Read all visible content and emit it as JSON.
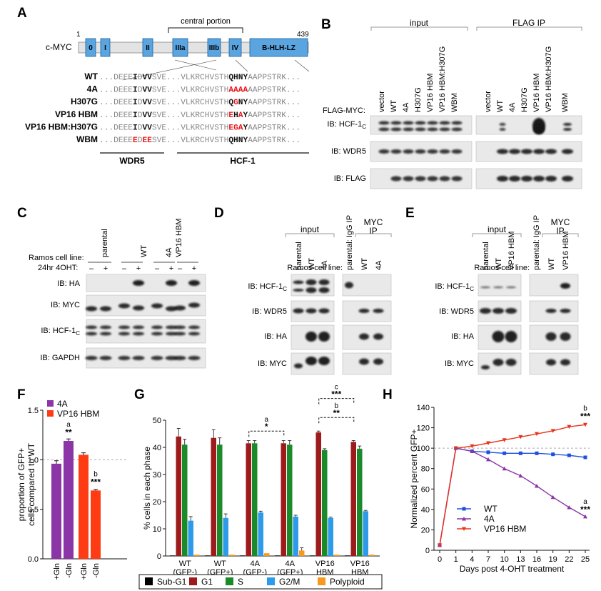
{
  "colors": {
    "domain_fill": "#5aa5e0",
    "domain_stroke": "#1b5f9e",
    "backbone": "#e3e3e3",
    "mut_red": "#e8141b",
    "blot_bg": "#e9e9e9",
    "band": "#141414",
    "purple": "#8b35a6",
    "orange_red": "#ff3b14",
    "subg1": "#000000",
    "g1": "#9e1b1b",
    "s": "#1b8a2a",
    "g2m": "#2e9bea",
    "poly": "#f59a1e",
    "h_wt": "#1f4fe0",
    "h_4a": "#8b35a6",
    "h_vp16": "#e8341b"
  },
  "panel_labels": [
    "A",
    "B",
    "C",
    "D",
    "E",
    "F",
    "G",
    "H"
  ],
  "panelA": {
    "protein": "c-MYC",
    "start": "1",
    "end": "439",
    "region": "central portion",
    "domains": [
      "0",
      "I",
      "II",
      "IIIa",
      "IIIb",
      "IV",
      "B-HLH-LZ"
    ],
    "rows": [
      {
        "name": "WT",
        "a": "DEEE",
        "b": "I",
        "c": "D",
        "d": "VV",
        "e": "SVE",
        "f": "VLKRCHVSTH",
        "g": "QHNY",
        "h": "AAPPSTRK"
      },
      {
        "name": "4A",
        "a": "DEEE",
        "b": "I",
        "c": "D",
        "d": "VV",
        "e": "SVE",
        "f": "VLKRCHVSTH",
        "g": "AAAA",
        "h": "AAPPSTRK"
      },
      {
        "name": "H307G",
        "a": "DEEE",
        "b": "I",
        "c": "D",
        "d": "VV",
        "e": "SVE",
        "f": "VLKRCHVSTH",
        "g": "QGNY",
        "h": "AAPPSTRK"
      },
      {
        "name": "VP16 HBM",
        "a": "DEEE",
        "b": "I",
        "c": "D",
        "d": "VV",
        "e": "SVE",
        "f": "VLKRCHVSTH",
        "g": "EHAY",
        "h": "AAPPSTRK"
      },
      {
        "name": "VP16 HBM:H307G",
        "a": "DEEE",
        "b": "I",
        "c": "D",
        "d": "VV",
        "e": "SVE",
        "f": "VLKRCHVSTH",
        "g": "EGAY",
        "h": "AAPPSTRK"
      },
      {
        "name": "WBM",
        "a": "DEEE",
        "b": "E",
        "c": "D",
        "d": "EE",
        "e": "SVE",
        "f": "VLKRCHVSTH",
        "g": "QHNY",
        "h": "AAPPSTRK"
      }
    ],
    "wdr5": "WDR5",
    "hcf": "HCF-1"
  },
  "panelB": {
    "input": "input",
    "flagip": "FLAG IP",
    "row_label": "FLAG-MYC:",
    "lanes": [
      "vector",
      "WT",
      "4A",
      "H307G",
      "VP16 HBM",
      "VP16 HBM:H307G",
      "WBM"
    ],
    "blots": [
      "IB: HCF-1",
      "IB: WDR5",
      "IB: FLAG"
    ]
  },
  "panelC": {
    "ramos": "Ramos cell line:",
    "ohtlabel": "24hr 4OHT:",
    "groups": [
      "parental",
      "WT",
      "4A",
      "VP16 HBM"
    ],
    "signs": [
      "–",
      "+"
    ],
    "blots": [
      "IB: HA",
      "IB: MYC",
      "IB: HCF-1",
      "IB: GAPDH"
    ]
  },
  "panelD": {
    "input": "input",
    "igg": "parental: IgG IP",
    "mycip": "MYC IP",
    "ramos": "Ramos cell line:",
    "lanes": [
      "parental",
      "WT",
      "4A"
    ],
    "iplanes": [
      "WT",
      "4A"
    ],
    "blots": [
      "IB: HCF-1",
      "IB: WDR5",
      "IB: HA",
      "IB: MYC"
    ]
  },
  "panelE": {
    "input": "input",
    "igg": "parental: IgG IP",
    "mycip": "MYC IP",
    "ramos": "Ramos cell line:",
    "lanes": [
      "parental",
      "WT",
      "VP16 HBM"
    ],
    "iplanes": [
      "WT",
      "VP16 HBM"
    ],
    "blots": [
      "IB: HCF-1",
      "IB: WDR5",
      "IB: HA",
      "IB: MYC"
    ]
  },
  "sub_c": "C",
  "chart_data": [
    {
      "panel": "F",
      "type": "bar",
      "ylabel": "proportion of GFP+ cells compared to WT",
      "ylim": [
        0,
        1.5
      ],
      "yticks": [
        "0.0",
        "0.5",
        "1.0",
        "1.5"
      ],
      "categories": [
        "+Gln",
        "-Gln",
        "+Gln",
        "-Gln"
      ],
      "values": [
        0.96,
        1.19,
        1.05,
        0.69
      ],
      "errors": [
        0.03,
        0.02,
        0.02,
        0.01
      ],
      "legend": [
        "4A",
        "VP16 HBM"
      ],
      "annotations": [
        {
          "bar": 1,
          "letter": "a",
          "stars": "**"
        },
        {
          "bar": 3,
          "letter": "b",
          "stars": "***"
        }
      ]
    },
    {
      "panel": "G",
      "type": "bar",
      "ylabel": "% cells in each phase",
      "ylim": [
        0,
        50
      ],
      "yticks": [
        "0",
        "10",
        "20",
        "30",
        "40",
        "50"
      ],
      "groups": [
        [
          "WT",
          "(GFP-)"
        ],
        [
          "WT",
          "(GFP+)"
        ],
        [
          "4A",
          "(GFP-)"
        ],
        [
          "4A",
          "(GFP+)"
        ],
        [
          "VP16",
          "HBM",
          "(GFP-)"
        ],
        [
          "VP16",
          "HBM",
          "(GFP+)"
        ]
      ],
      "series": [
        {
          "name": "Sub-G1",
          "values": [
            0.2,
            0.2,
            0.2,
            0.2,
            0.2,
            0.2
          ],
          "errors": [
            0,
            0,
            0,
            0,
            0,
            0
          ]
        },
        {
          "name": "G1",
          "values": [
            44,
            43.5,
            41.5,
            41.5,
            45.5,
            42
          ],
          "errors": [
            3,
            3,
            1,
            1,
            0.5,
            0.5
          ]
        },
        {
          "name": "S",
          "values": [
            41,
            41,
            41.5,
            41,
            39,
            39.5
          ],
          "errors": [
            2,
            2.5,
            1,
            1.5,
            0.5,
            1
          ]
        },
        {
          "name": "G2/M",
          "values": [
            13,
            14,
            16,
            14.5,
            14,
            16.5
          ],
          "errors": [
            1.5,
            1.5,
            0.5,
            0.5,
            0.3,
            0.3
          ]
        },
        {
          "name": "Polyploid",
          "values": [
            0.5,
            0.5,
            1,
            2,
            0.5,
            0.5
          ],
          "errors": [
            0,
            0,
            0,
            1,
            0,
            0
          ]
        }
      ],
      "annotations": [
        {
          "from": 2,
          "to": 3,
          "letter": "a",
          "stars": "*"
        },
        {
          "from": 4,
          "to": 5,
          "letter": "b",
          "stars": "**"
        },
        {
          "from": 4,
          "to": 5,
          "letter": "c",
          "stars": "***"
        }
      ]
    },
    {
      "panel": "H",
      "type": "line",
      "ylabel": "Normalized percent GFP+",
      "xlabel": "Days post 4-OHT treatment",
      "ylim": [
        0,
        140
      ],
      "yticks": [
        "0",
        "20",
        "40",
        "60",
        "80",
        "100",
        "120",
        "140"
      ],
      "x": [
        0,
        1,
        4,
        7,
        10,
        13,
        16,
        19,
        22,
        25
      ],
      "series": [
        {
          "name": "WT",
          "values": [
            5,
            100,
            97,
            96,
            95,
            95,
            95,
            94,
            93,
            91
          ]
        },
        {
          "name": "4A",
          "values": [
            5,
            100,
            97,
            89,
            80,
            73,
            63,
            52,
            42,
            33
          ]
        },
        {
          "name": "VP16 HBM",
          "values": [
            5,
            100,
            102,
            105,
            108,
            111,
            114,
            117,
            121,
            123
          ]
        }
      ],
      "annotations": [
        {
          "series": "VP16 HBM",
          "letter": "b",
          "stars": "***"
        },
        {
          "series": "4A",
          "letter": "a",
          "stars": "***"
        }
      ]
    }
  ]
}
